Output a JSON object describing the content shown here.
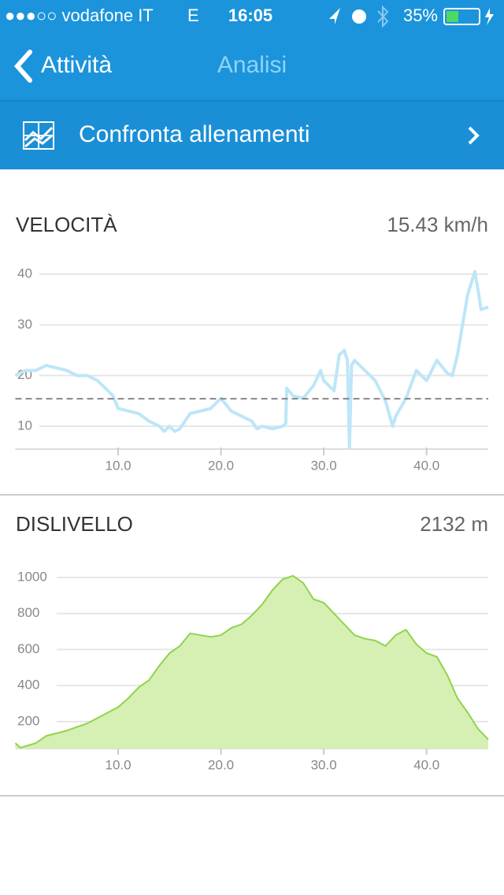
{
  "status_bar": {
    "carrier": "●●●○○ vodafone IT",
    "network": "E",
    "time": "16:05",
    "battery": "35%"
  },
  "nav": {
    "back": "Attività",
    "title": "Analisi"
  },
  "compare": {
    "label": "Confronta allenamenti"
  },
  "chart_data": [
    {
      "type": "line",
      "title": "VELOCITÀ",
      "summary": {
        "value": 15.43,
        "label": "15.43 km/h"
      },
      "color": "#bde6f8",
      "average_line_color": "#888888",
      "grid": true,
      "x": [
        0,
        1,
        2,
        3,
        4,
        5,
        6,
        7,
        8,
        9,
        9.5,
        10,
        11,
        12,
        13,
        14,
        14.5,
        15,
        15.5,
        16,
        17,
        18,
        19,
        20,
        21,
        22,
        23,
        23.5,
        24,
        25,
        26,
        26.3,
        26.4,
        27,
        28,
        29,
        29.7,
        30,
        31,
        31.5,
        32,
        32.3,
        32.5,
        32.7,
        33,
        34,
        35,
        36,
        36.7,
        37,
        38,
        39,
        40,
        41,
        42,
        42.5,
        43,
        44,
        44.7,
        45,
        45.3,
        46
      ],
      "values": [
        20,
        21,
        21,
        22,
        21.5,
        21,
        20,
        20,
        19,
        17,
        16,
        13.5,
        13,
        12.5,
        11,
        10,
        9,
        10,
        9,
        9.5,
        12.5,
        13,
        13.5,
        15.5,
        13,
        12,
        11,
        9.5,
        10,
        9.5,
        10,
        10.5,
        17.5,
        16,
        15.5,
        18,
        21,
        19,
        17,
        24,
        25,
        23,
        5.8,
        22,
        23,
        21,
        19,
        15,
        10,
        12,
        15.5,
        21,
        19,
        23,
        20.5,
        20,
        24,
        36,
        40.5,
        37,
        33,
        33.5
      ],
      "xlim": [
        0,
        46
      ],
      "ylim": [
        5.5,
        41.5
      ],
      "xticks": [
        {
          "value": 10,
          "label": "10.0"
        },
        {
          "value": 20,
          "label": "20.0"
        },
        {
          "value": 30,
          "label": "30.0"
        },
        {
          "value": 40,
          "label": "40.0"
        }
      ],
      "yticks": [
        10,
        20,
        30,
        40
      ]
    },
    {
      "type": "area",
      "title": "DISLIVELLO",
      "summary_text": "2132 m",
      "color": "#8fd44c",
      "fill": "#d6efb3",
      "grid": true,
      "x": [
        0,
        0.5,
        2,
        3,
        5,
        7,
        9,
        10,
        11,
        12,
        13,
        14,
        15,
        16,
        17,
        18,
        19,
        20,
        21,
        22,
        23,
        24,
        25,
        26,
        27,
        28,
        29,
        30,
        31,
        32,
        33,
        34,
        35,
        36,
        37,
        38,
        39,
        40,
        41,
        42,
        43,
        44,
        45,
        46
      ],
      "values": [
        80,
        55,
        80,
        120,
        150,
        190,
        250,
        280,
        330,
        390,
        430,
        510,
        580,
        620,
        690,
        680,
        670,
        680,
        720,
        740,
        790,
        850,
        930,
        990,
        1010,
        970,
        880,
        860,
        800,
        740,
        680,
        660,
        650,
        620,
        680,
        710,
        630,
        580,
        560,
        460,
        330,
        250,
        160,
        100
      ],
      "xlim": [
        0,
        46
      ],
      "ylim": [
        50,
        1040
      ],
      "xticks": [
        {
          "value": 10,
          "label": "10.0"
        },
        {
          "value": 20,
          "label": "20.0"
        },
        {
          "value": 30,
          "label": "30.0"
        },
        {
          "value": 40,
          "label": "40.0"
        }
      ],
      "yticks": [
        200,
        400,
        600,
        800,
        1000
      ]
    }
  ]
}
